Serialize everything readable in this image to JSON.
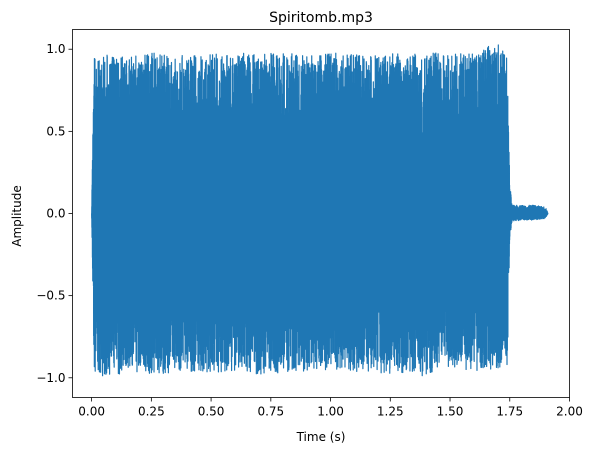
{
  "chart_data": {
    "type": "line",
    "title": "Spiritomb.mp3",
    "xlabel": "Time (s)",
    "ylabel": "Amplitude",
    "xlim": [
      -0.08,
      2.0
    ],
    "ylim": [
      -1.12,
      1.12
    ],
    "xticks": [
      0.0,
      0.25,
      0.5,
      0.75,
      1.0,
      1.25,
      1.5,
      1.75,
      2.0
    ],
    "xtick_labels": [
      "0.00",
      "0.25",
      "0.50",
      "0.75",
      "1.00",
      "1.25",
      "1.50",
      "1.75",
      "2.00"
    ],
    "yticks": [
      -1.0,
      -0.5,
      0.0,
      0.5,
      1.0
    ],
    "ytick_labels": [
      "−1.0",
      "−0.5",
      "0.0",
      "0.5",
      "1.0"
    ],
    "grid": false,
    "color": "#1f77b4",
    "series": [
      {
        "envelope": {
          "t": [
            0.0,
            0.01,
            0.05,
            0.1,
            0.2,
            0.3,
            0.4,
            0.5,
            0.6,
            0.7,
            0.8,
            0.9,
            1.0,
            1.1,
            1.2,
            1.3,
            1.4,
            1.45,
            1.5,
            1.6,
            1.7,
            1.74,
            1.75,
            1.76,
            1.8,
            1.85,
            1.9,
            1.91
          ],
          "upper": [
            0.0,
            0.98,
            0.97,
            0.95,
            0.97,
            0.98,
            0.96,
            0.97,
            0.98,
            0.97,
            0.98,
            0.96,
            0.98,
            0.97,
            0.96,
            0.98,
            0.97,
            0.98,
            0.97,
            0.98,
            1.05,
            0.95,
            0.18,
            0.05,
            0.05,
            0.05,
            0.04,
            0.0
          ],
          "lower": [
            0.0,
            -0.98,
            -1.0,
            -0.98,
            -0.97,
            -0.98,
            -0.96,
            -0.97,
            -0.96,
            -0.98,
            -0.97,
            -0.96,
            -0.95,
            -0.96,
            -0.98,
            -0.97,
            -1.0,
            -0.95,
            -0.93,
            -0.96,
            -0.95,
            -0.92,
            -0.15,
            -0.05,
            -0.04,
            -0.04,
            -0.03,
            0.0
          ]
        }
      }
    ]
  }
}
